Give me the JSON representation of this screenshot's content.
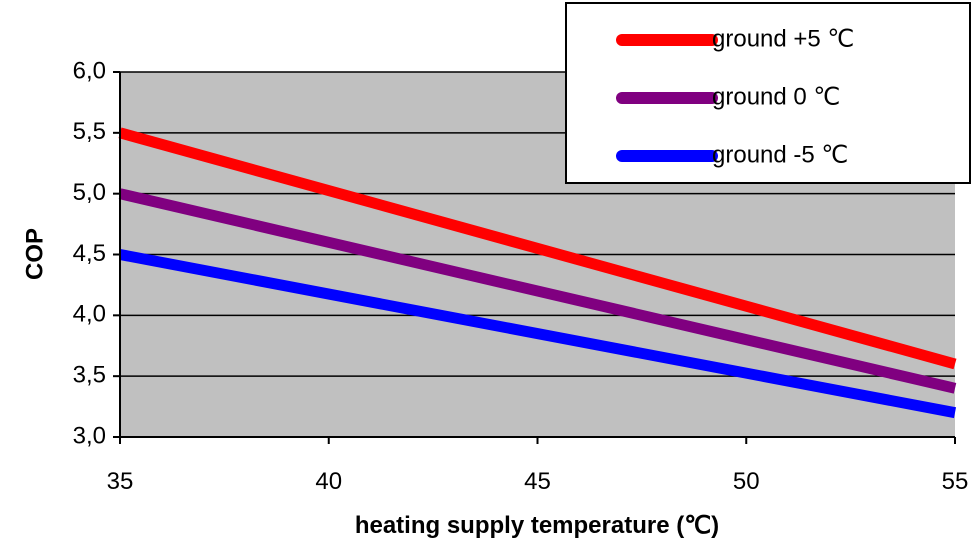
{
  "chart_data": {
    "type": "line",
    "title": "",
    "xlabel": "heating supply temperature (℃)",
    "ylabel": "COP",
    "xlim": [
      35,
      55
    ],
    "ylim": [
      3.0,
      6.0
    ],
    "x_ticks": [
      "35",
      "40",
      "45",
      "50",
      "55"
    ],
    "y_ticks": [
      "3,0",
      "3,5",
      "4,0",
      "4,5",
      "5,0",
      "5,5",
      "6,0"
    ],
    "grid": "horizontal",
    "legend_position": "top-right",
    "plot_background": "#c0c0c0",
    "series": [
      {
        "name": "ground +5 ℃",
        "color": "#ff0000",
        "x": [
          35,
          55
        ],
        "y": [
          5.5,
          3.6
        ]
      },
      {
        "name": "ground 0 ℃",
        "color": "#800080",
        "x": [
          35,
          55
        ],
        "y": [
          5.0,
          3.4
        ]
      },
      {
        "name": "ground -5 ℃",
        "color": "#0000ff",
        "x": [
          35,
          55
        ],
        "y": [
          4.5,
          3.2
        ]
      }
    ]
  }
}
